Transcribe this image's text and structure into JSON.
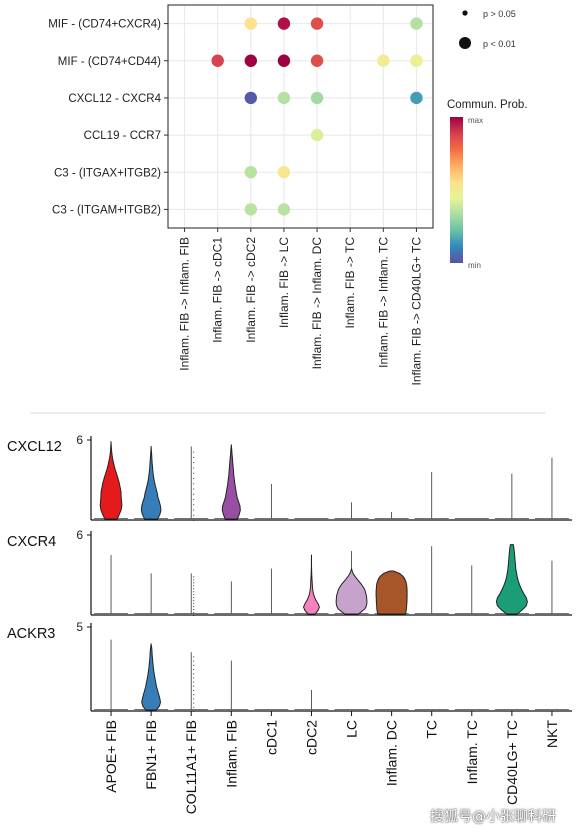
{
  "chart_data": [
    {
      "type": "dotplot",
      "rows": [
        "MIF - (CD74+CXCR4)",
        "MIF - (CD74+CD44)",
        "CXCL12 - CXCR4",
        "CCL19 - CCR7",
        "C3 - (ITGAX+ITGB2)",
        "C3 - (ITGAM+ITGB2)"
      ],
      "columns": [
        "Inflam. FIB -> Inflam. FIB",
        "Inflam. FIB -> cDC1",
        "Inflam. FIB -> cDC2",
        "Inflam. FIB -> LC",
        "Inflam. FIB -> Inflam. DC",
        "Inflam. FIB -> TC",
        "Inflam. FIB -> Inflam. TC",
        "Inflam. FIB -> CD40LG+ TC"
      ],
      "points": [
        {
          "row": 0,
          "col": 2,
          "prob": 0.55,
          "p": "< 0.01"
        },
        {
          "row": 0,
          "col": 3,
          "prob": 0.97,
          "p": "< 0.01"
        },
        {
          "row": 0,
          "col": 4,
          "prob": 0.85,
          "p": "< 0.01"
        },
        {
          "row": 0,
          "col": 7,
          "prob": 0.35,
          "p": "< 0.01"
        },
        {
          "row": 1,
          "col": 1,
          "prob": 0.88,
          "p": "< 0.01"
        },
        {
          "row": 1,
          "col": 2,
          "prob": 1.0,
          "p": "< 0.01"
        },
        {
          "row": 1,
          "col": 3,
          "prob": 1.0,
          "p": "< 0.01"
        },
        {
          "row": 1,
          "col": 4,
          "prob": 0.85,
          "p": "< 0.01"
        },
        {
          "row": 1,
          "col": 6,
          "prob": 0.5,
          "p": "< 0.01"
        },
        {
          "row": 1,
          "col": 7,
          "prob": 0.48,
          "p": "< 0.01"
        },
        {
          "row": 2,
          "col": 2,
          "prob": 0.02,
          "p": "< 0.01"
        },
        {
          "row": 2,
          "col": 3,
          "prob": 0.35,
          "p": "< 0.01"
        },
        {
          "row": 2,
          "col": 4,
          "prob": 0.32,
          "p": "< 0.01"
        },
        {
          "row": 2,
          "col": 7,
          "prob": 0.15,
          "p": "< 0.01"
        },
        {
          "row": 3,
          "col": 4,
          "prob": 0.42,
          "p": "< 0.01"
        },
        {
          "row": 4,
          "col": 2,
          "prob": 0.36,
          "p": "< 0.01"
        },
        {
          "row": 4,
          "col": 3,
          "prob": 0.52,
          "p": "< 0.01"
        },
        {
          "row": 5,
          "col": 2,
          "prob": 0.36,
          "p": "< 0.01"
        },
        {
          "row": 5,
          "col": 3,
          "prob": 0.36,
          "p": "< 0.01"
        }
      ],
      "legend": {
        "size_title": "",
        "size_entries": [
          "p > 0.05",
          "p < 0.01"
        ],
        "color_title": "Commun. Prob.",
        "color_max": "max",
        "color_min": "min",
        "colormap": [
          "#5E4FA2",
          "#3288BD",
          "#66C2A5",
          "#ABDDA4",
          "#E6F598",
          "#FEE08B",
          "#FDAE61",
          "#F46D43",
          "#D53E4F",
          "#9E0142"
        ]
      }
    },
    {
      "type": "violin",
      "categories": [
        "APOE+ FIB",
        "FBN1+ FIB",
        "COL11A1+ FIB",
        "Inflam. FIB",
        "cDC1",
        "cDC2",
        "LC",
        "Inflam. DC",
        "TC",
        "Inflam. TC",
        "CD40LG+ TC",
        "NKT"
      ],
      "colors": [
        "#E41A1C",
        "#377EB8",
        "#4DAF4A",
        "#984EA3",
        "#FF7F00",
        "#F781BF",
        "#C7A2CC",
        "#A65628",
        "#999999",
        "#66C2A5",
        "#1B9E77",
        "#8DA0CB"
      ],
      "panels": [
        {
          "gene": "CXCL12",
          "ymax": 6,
          "spike": [
            0.55,
            0.55,
            0.92,
            0.15,
            0.45,
            0,
            0.22,
            0.1,
            0.6,
            0,
            0.58,
            0.78
          ],
          "violins": [
            {
              "index": 0,
              "max": 0.98,
              "profile": [
                0.34,
                0.46,
                0.56,
                0.6,
                0.58,
                0.56,
                0.55,
                0.5,
                0.45,
                0.38,
                0.3,
                0.22,
                0.16,
                0.1,
                0.06,
                0.03,
                0.015,
                0
              ]
            },
            {
              "index": 1,
              "max": 0.92,
              "profile": [
                0.36,
                0.48,
                0.54,
                0.52,
                0.46,
                0.38,
                0.34,
                0.28,
                0.22,
                0.17,
                0.13,
                0.1,
                0.08,
                0.06,
                0.045,
                0.03,
                0.015,
                0
              ]
            },
            {
              "index": 3,
              "max": 0.94,
              "profile": [
                0.34,
                0.44,
                0.5,
                0.48,
                0.4,
                0.32,
                0.28,
                0.24,
                0.2,
                0.17,
                0.14,
                0.12,
                0.1,
                0.08,
                0.06,
                0.04,
                0.02,
                0
              ]
            }
          ]
        },
        {
          "gene": "CXCR4",
          "ymax": 6,
          "spike": [
            0.75,
            0.52,
            0.52,
            0.42,
            0.58,
            0.5,
            0.8,
            0.15,
            0.86,
            0.62,
            0.88,
            0.68
          ],
          "violins": [
            {
              "index": 5,
              "max": 0.75,
              "profile": [
                0.2,
                0.36,
                0.44,
                0.36,
                0.24,
                0.16,
                0.1,
                0.07,
                0.05,
                0.04,
                0.03,
                0.02,
                0.015,
                0.01,
                0.005,
                0.003,
                0.002,
                0
              ]
            },
            {
              "index": 6,
              "max": 0.58,
              "profile": [
                0.38,
                0.58,
                0.75,
                0.82,
                0.85,
                0.85,
                0.84,
                0.82,
                0.78,
                0.74,
                0.66,
                0.56,
                0.44,
                0.32,
                0.2,
                0.1,
                0.04,
                0
              ]
            },
            {
              "index": 7,
              "max": 0.55,
              "profile": [
                0.76,
                0.8,
                0.82,
                0.83,
                0.84,
                0.85,
                0.85,
                0.86,
                0.86,
                0.86,
                0.85,
                0.84,
                0.82,
                0.78,
                0.72,
                0.62,
                0.45,
                0.1
              ]
            },
            {
              "index": 10,
              "max": 0.88,
              "profile": [
                0.3,
                0.58,
                0.8,
                0.86,
                0.8,
                0.66,
                0.54,
                0.44,
                0.36,
                0.3,
                0.26,
                0.22,
                0.2,
                0.18,
                0.16,
                0.14,
                0.12,
                0.08
              ]
            }
          ]
        },
        {
          "gene": "ACKR3",
          "ymax": 5,
          "spike": [
            0.85,
            0.7,
            0.7,
            0.6,
            0,
            0.25,
            0,
            0,
            0,
            0,
            0,
            0
          ],
          "violins": [
            {
              "index": 1,
              "max": 0.8,
              "profile": [
                0.3,
                0.46,
                0.52,
                0.48,
                0.42,
                0.36,
                0.3,
                0.26,
                0.22,
                0.18,
                0.15,
                0.12,
                0.1,
                0.08,
                0.06,
                0.05,
                0.03,
                0
              ]
            }
          ]
        }
      ]
    }
  ]
}
